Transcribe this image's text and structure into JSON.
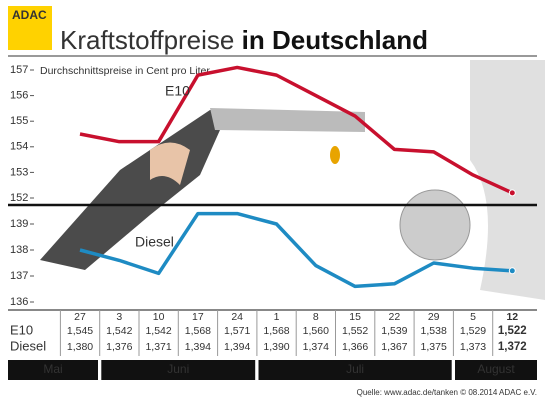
{
  "chart_data": {
    "type": "line",
    "brand": "ADAC",
    "title": "Kraftstoffpreise",
    "title_bold": "in Deutschland",
    "subtitle": "Durchschnittspreise in Cent pro Liter",
    "categories": [
      "27",
      "3",
      "10",
      "17",
      "24",
      "1",
      "8",
      "15",
      "22",
      "29",
      "5",
      "12"
    ],
    "months": [
      "Mai",
      "Juni",
      "Juli",
      "August"
    ],
    "series": [
      {
        "name": "E10",
        "color": "#c8102e",
        "axis": "y",
        "values": [
          154.5,
          154.2,
          154.2,
          156.8,
          157.1,
          156.8,
          156.0,
          155.2,
          153.9,
          153.8,
          152.9,
          152.2
        ],
        "value_labels": [
          "1,545",
          "1,542",
          "1,542",
          "1,568",
          "1,571",
          "1,568",
          "1,560",
          "1,552",
          "1,539",
          "1,538",
          "1,529",
          "1,522"
        ]
      },
      {
        "name": "Diesel",
        "color": "#1e8bc3",
        "axis": "y2",
        "values": [
          138.0,
          137.6,
          137.1,
          139.4,
          139.4,
          139.0,
          137.4,
          136.6,
          136.7,
          137.5,
          137.3,
          137.2
        ],
        "value_labels": [
          "1,380",
          "1,376",
          "1,371",
          "1,394",
          "1,394",
          "1,390",
          "1,374",
          "1,366",
          "1,367",
          "1,375",
          "1,373",
          "1,372"
        ]
      }
    ],
    "ylim": [
      152,
      157
    ],
    "yticks": [
      152,
      153,
      154,
      155,
      156,
      157
    ],
    "y2lim": [
      136,
      139
    ],
    "y2ticks": [
      136,
      137,
      138,
      139
    ],
    "source": "Quelle: www.adac.de/tanken  © 08.2014  ADAC e.V."
  }
}
